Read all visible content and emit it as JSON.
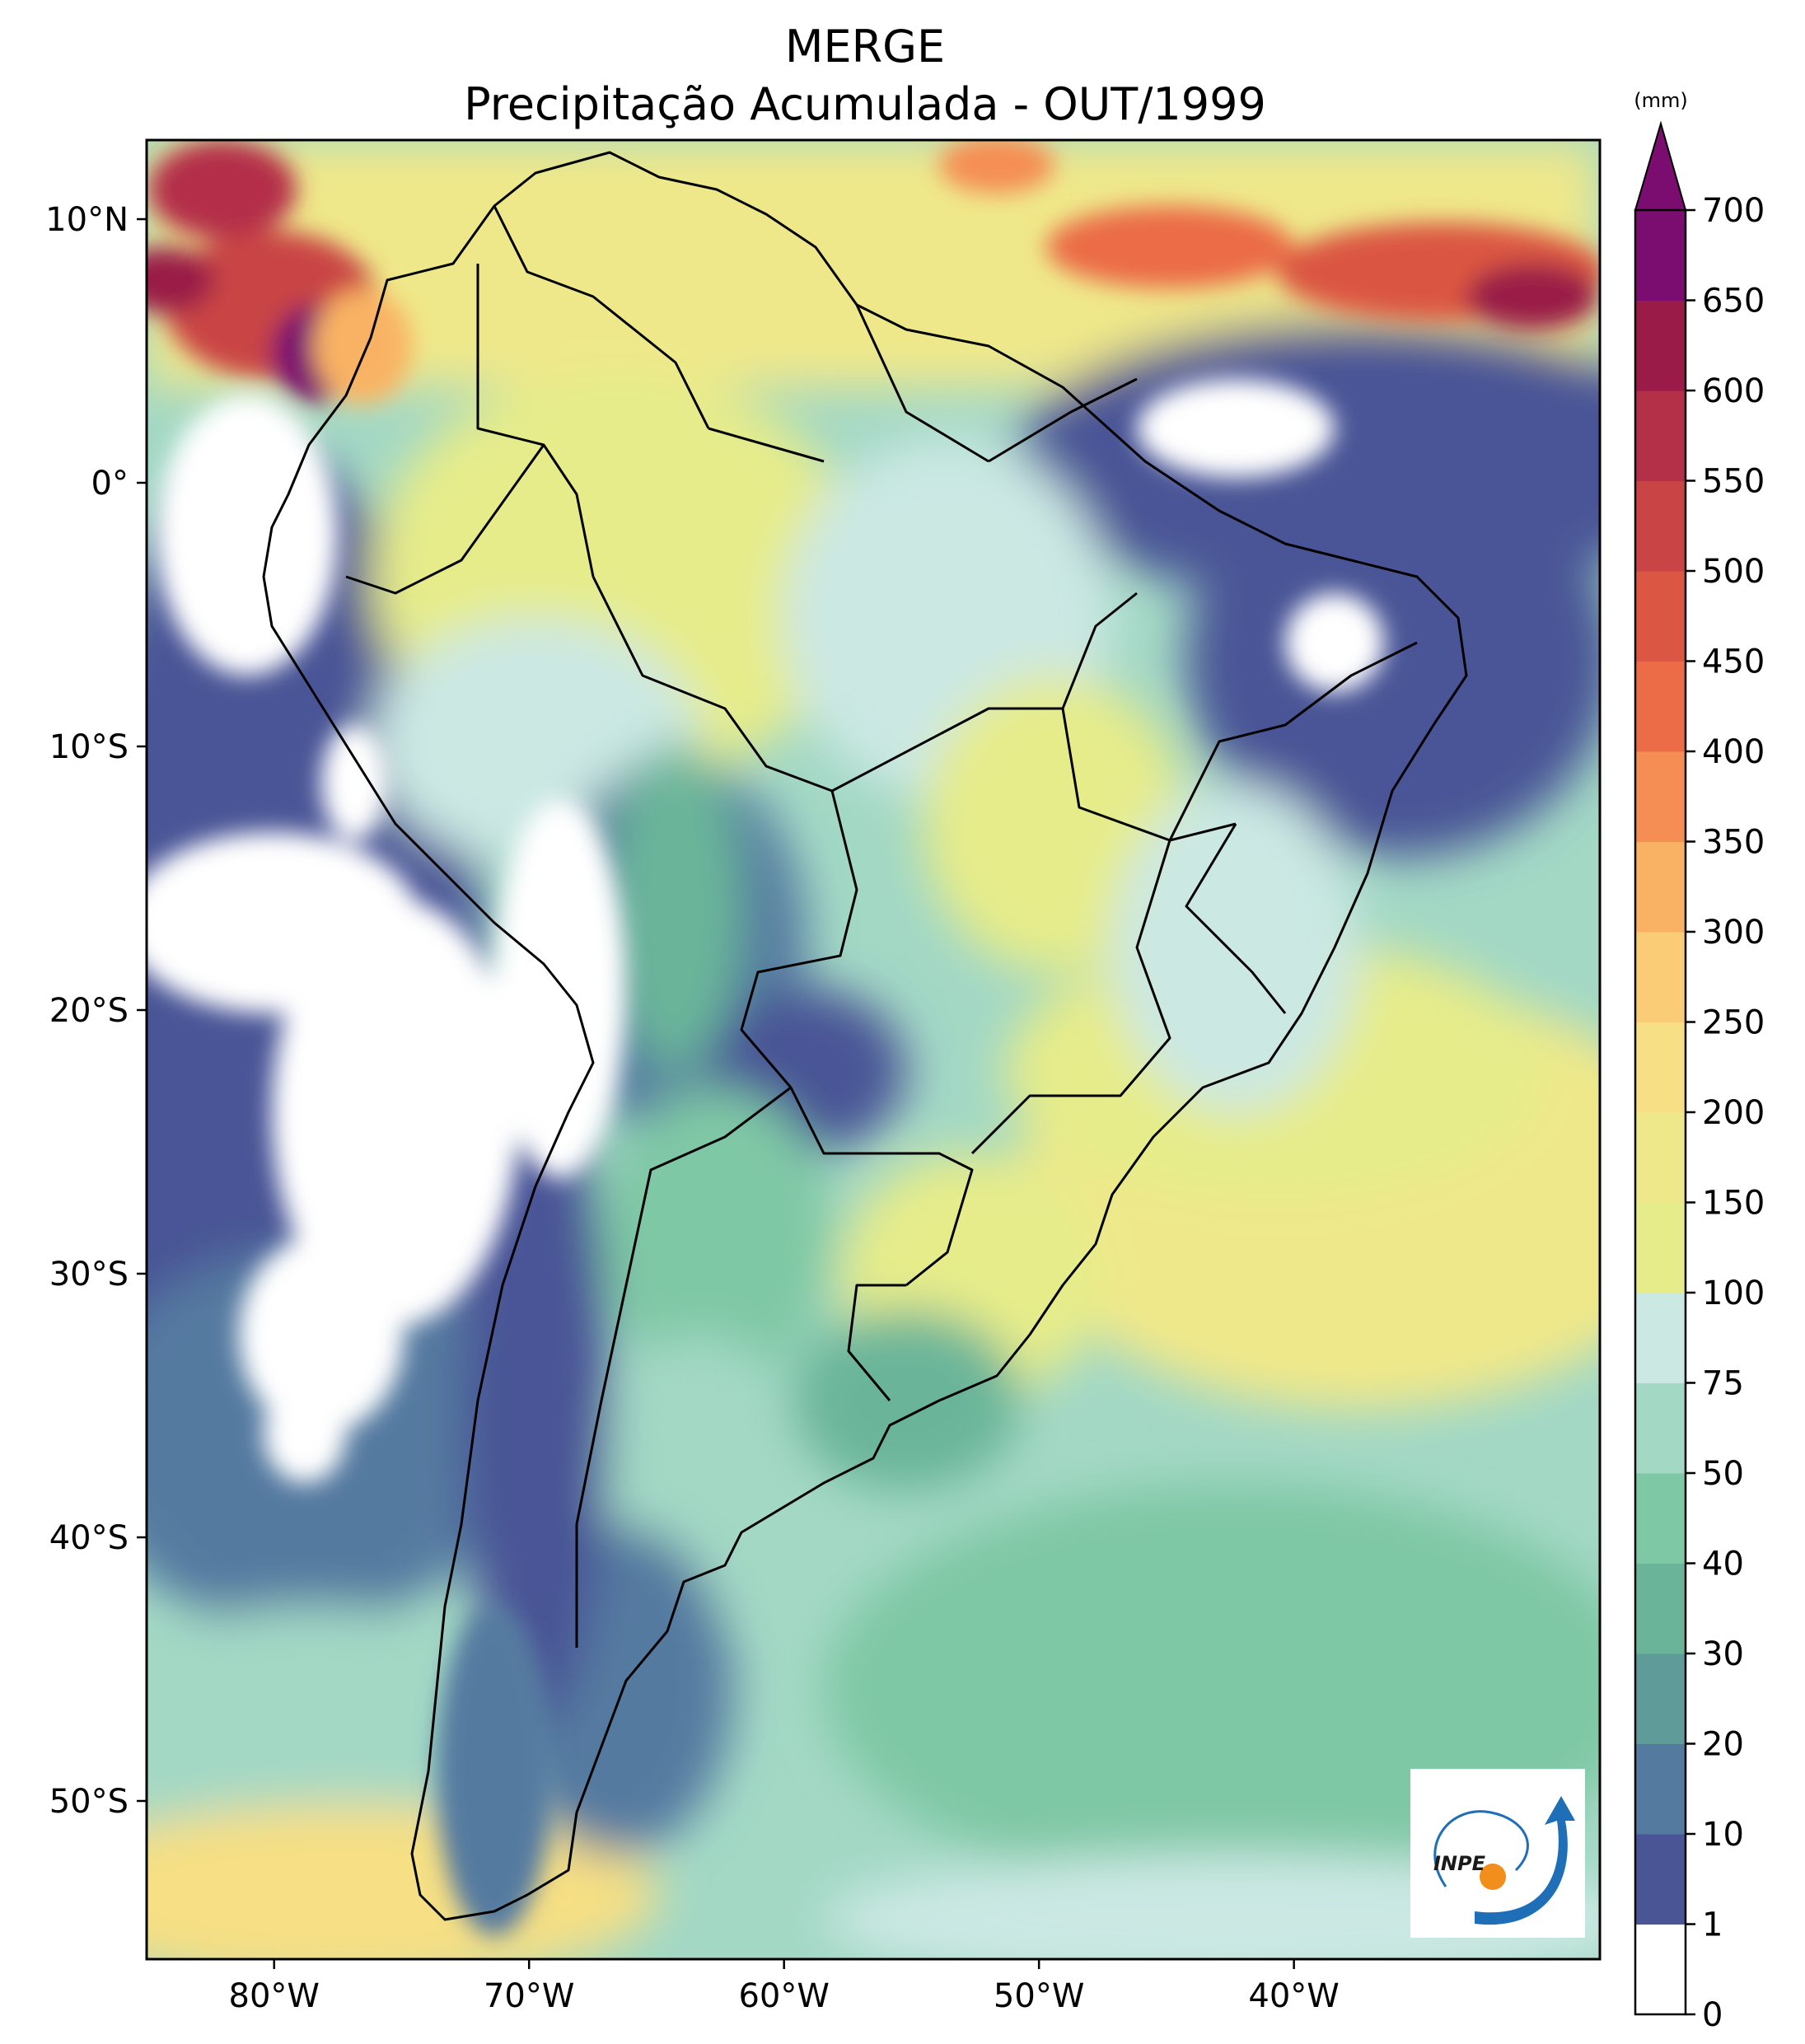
{
  "title": {
    "line1": "MERGE",
    "line2": "Precipitação Acumulada - OUT/1999"
  },
  "map": {
    "lon_range": [
      -85,
      -28
    ],
    "lat_range": [
      -56,
      13
    ],
    "lat_ticks": [
      {
        "value": 10,
        "label": "10°N"
      },
      {
        "value": 0,
        "label": "0°"
      },
      {
        "value": -10,
        "label": "10°S"
      },
      {
        "value": -20,
        "label": "20°S"
      },
      {
        "value": -30,
        "label": "30°S"
      },
      {
        "value": -40,
        "label": "40°S"
      },
      {
        "value": -50,
        "label": "50°S"
      }
    ],
    "lon_ticks": [
      {
        "value": -80,
        "label": "80°W"
      },
      {
        "value": -70,
        "label": "70°W"
      },
      {
        "value": -60,
        "label": "60°W"
      },
      {
        "value": -50,
        "label": "50°W"
      },
      {
        "value": -40,
        "label": "40°W"
      }
    ]
  },
  "colorbar": {
    "unit": "(mm)",
    "levels": [
      "0",
      "1",
      "10",
      "20",
      "30",
      "40",
      "50",
      "75",
      "100",
      "150",
      "200",
      "250",
      "300",
      "350",
      "400",
      "450",
      "500",
      "550",
      "600",
      "650",
      "700"
    ],
    "colors": [
      "#ffffff",
      "#4a5596",
      "#547aa0",
      "#5f9c99",
      "#6ab59a",
      "#7fc8a5",
      "#a3d8c5",
      "#cbe8e3",
      "#e6ec8a",
      "#efe88a",
      "#f6df84",
      "#fbcc76",
      "#f9b263",
      "#f58e54",
      "#eb6c47",
      "#db5743",
      "#c94545",
      "#b42f48",
      "#9a1b47",
      "#7a0d6f"
    ],
    "extend_color": "#7a0d6f"
  },
  "logo": {
    "text": "INPE"
  }
}
